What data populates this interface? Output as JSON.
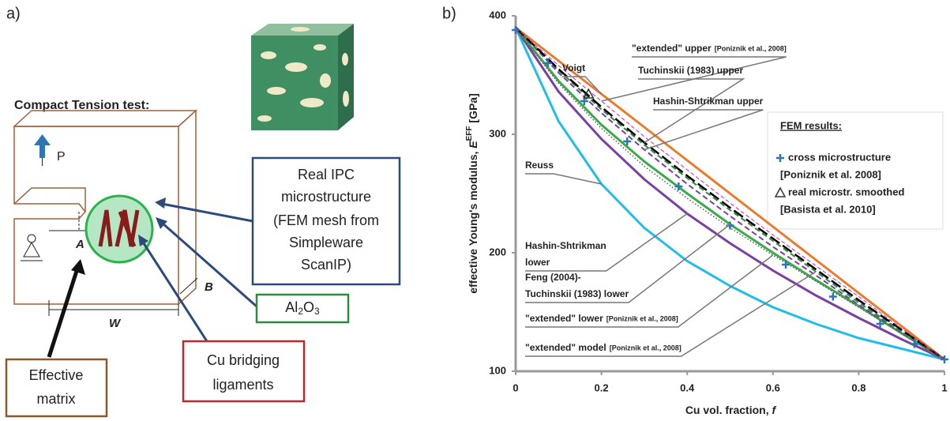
{
  "panel_a": {
    "label": "a)",
    "title": "Compact Tension test:",
    "load": "P",
    "dims": {
      "A": "A",
      "B": "B",
      "W": "W"
    },
    "real_ipc": [
      "Real IPC",
      "microstructure",
      "(FEM mesh from",
      "Simpleware",
      "ScanIP)"
    ],
    "al2o3": {
      "a": "Al",
      "b": "2",
      "c": "O",
      "d": "3"
    },
    "cu": [
      "Cu bridging",
      "ligaments"
    ],
    "matrix": [
      "Effective",
      "matrix"
    ]
  },
  "chart_data": {
    "type": "line",
    "label": "b)",
    "xlabel": {
      "text": "Cu vol. fraction,",
      "symbol": "f"
    },
    "ylabel": {
      "text": "effective Young's modulus,",
      "symbol": "E",
      "sup": "EFF",
      "unit": "[GPa]"
    },
    "xlim": [
      0,
      1
    ],
    "xticks": [
      0,
      0.2,
      0.4,
      0.6,
      0.8,
      1
    ],
    "ylim": [
      100,
      400
    ],
    "yticks": [
      100,
      200,
      300,
      400
    ],
    "series": [
      {
        "name": "Voigt",
        "color": "#e97b2b",
        "dash": "solid",
        "x": [
          0,
          0.1,
          0.2,
          0.3,
          0.4,
          0.5,
          0.6,
          0.7,
          0.8,
          0.9,
          1
        ],
        "values": [
          390,
          362,
          334,
          306,
          278,
          250,
          222,
          194,
          166,
          138,
          110
        ]
      },
      {
        "name": "Reuss",
        "color": "#1fbde8",
        "dash": "solid",
        "x": [
          0,
          0.1,
          0.2,
          0.3,
          0.4,
          0.5,
          0.6,
          0.7,
          0.8,
          0.9,
          1
        ],
        "values": [
          390,
          311,
          258,
          221,
          193,
          172,
          154,
          140,
          128,
          119,
          110
        ]
      },
      {
        "name": "Hashin-Shtrikman lower",
        "color": "#7b3fa0",
        "dash": "solid",
        "x": [
          0,
          0.1,
          0.2,
          0.3,
          0.4,
          0.5,
          0.6,
          0.7,
          0.8,
          0.9,
          1
        ],
        "values": [
          390,
          336,
          296,
          262,
          233,
          208,
          185,
          164,
          145,
          127,
          110
        ]
      },
      {
        "name": "Feng (2004)-Tuchinskii (1983) lower",
        "color": "#3aab4a",
        "dash": "solid",
        "x": [
          0,
          0.1,
          0.2,
          0.3,
          0.4,
          0.5,
          0.6,
          0.7,
          0.8,
          0.9,
          1
        ],
        "values": [
          390,
          345,
          308,
          277,
          250,
          224,
          200,
          177,
          155,
          132,
          110
        ]
      },
      {
        "name": "\"extended\" lower",
        "color": "#555555",
        "dash": "dotted",
        "x": [
          0,
          0.1,
          0.2,
          0.3,
          0.4,
          0.5,
          0.6,
          0.7,
          0.8,
          0.9,
          1
        ],
        "values": [
          390,
          343,
          305,
          273,
          246,
          221,
          198,
          176,
          154,
          132,
          110
        ]
      },
      {
        "name": "Hashin-Shtrikman upper",
        "color": "#7b3fa0",
        "dash": "dashed",
        "x": [
          0,
          0.1,
          0.2,
          0.3,
          0.4,
          0.5,
          0.6,
          0.7,
          0.8,
          0.9,
          1
        ],
        "values": [
          390,
          352,
          318,
          287,
          258,
          231,
          205,
          181,
          156,
          133,
          110
        ]
      },
      {
        "name": "\"extended\" model",
        "color": "#2e8b3e",
        "dash": "dashed",
        "x": [
          0,
          0.1,
          0.2,
          0.3,
          0.4,
          0.5,
          0.6,
          0.7,
          0.8,
          0.9,
          1
        ],
        "values": [
          390,
          354,
          321,
          291,
          263,
          236,
          210,
          184,
          158,
          134,
          110
        ]
      },
      {
        "name": "Tuchinskii (1983) upper",
        "color": "#000000",
        "dash": "longdash",
        "x": [
          0,
          0.1,
          0.2,
          0.3,
          0.4,
          0.5,
          0.6,
          0.7,
          0.8,
          0.9,
          1
        ],
        "values": [
          390,
          355,
          323,
          293,
          265,
          238,
          212,
          186,
          160,
          135,
          110
        ]
      },
      {
        "name": "\"extended\" upper",
        "color": "#d020c0",
        "dash": "thin",
        "x": [
          0,
          0.1,
          0.2,
          0.3,
          0.4,
          0.5,
          0.6,
          0.7,
          0.8,
          0.9,
          1
        ],
        "values": [
          390,
          358,
          328,
          298,
          270,
          242,
          215,
          189,
          163,
          136,
          110
        ]
      }
    ],
    "points": [
      {
        "name": "cross microstructure",
        "ref": "[Poniznik et al. 2008]",
        "marker": "plus",
        "color": "#2e75b6",
        "x": [
          0,
          0.075,
          0.16,
          0.26,
          0.38,
          0.5,
          0.63,
          0.74,
          0.85,
          0.93,
          1
        ],
        "values": [
          388,
          360,
          328,
          294,
          256,
          223,
          190,
          163,
          140,
          123,
          110
        ]
      },
      {
        "name": "real microstr. smoothed",
        "ref": "[Basista et al. 2010]",
        "marker": "triangle",
        "color": "#333333",
        "x": [
          0.17
        ],
        "values": [
          334
        ]
      }
    ],
    "legend_title": "FEM results:",
    "annotations": [
      {
        "lines": [
          "Voigt"
        ]
      },
      {
        "lines": [
          "\"extended\" upper"
        ],
        "ref": "[Poniznik et al., 2008]"
      },
      {
        "lines": [
          "Tuchinskii (1983) upper"
        ]
      },
      {
        "lines": [
          "Hashin-Shtrikman upper"
        ]
      },
      {
        "lines": [
          "Reuss"
        ]
      },
      {
        "lines": [
          "Hashin-Shtrikman",
          "lower"
        ]
      },
      {
        "lines": [
          "Feng (2004)-",
          "Tuchinskii (1983) lower"
        ]
      },
      {
        "lines": [
          "\"extended\" lower"
        ],
        "ref": "[Poniznik et al., 2008]"
      },
      {
        "lines": [
          "\"extended\" model"
        ],
        "ref": "[Poniznik et al., 2008]"
      }
    ]
  }
}
